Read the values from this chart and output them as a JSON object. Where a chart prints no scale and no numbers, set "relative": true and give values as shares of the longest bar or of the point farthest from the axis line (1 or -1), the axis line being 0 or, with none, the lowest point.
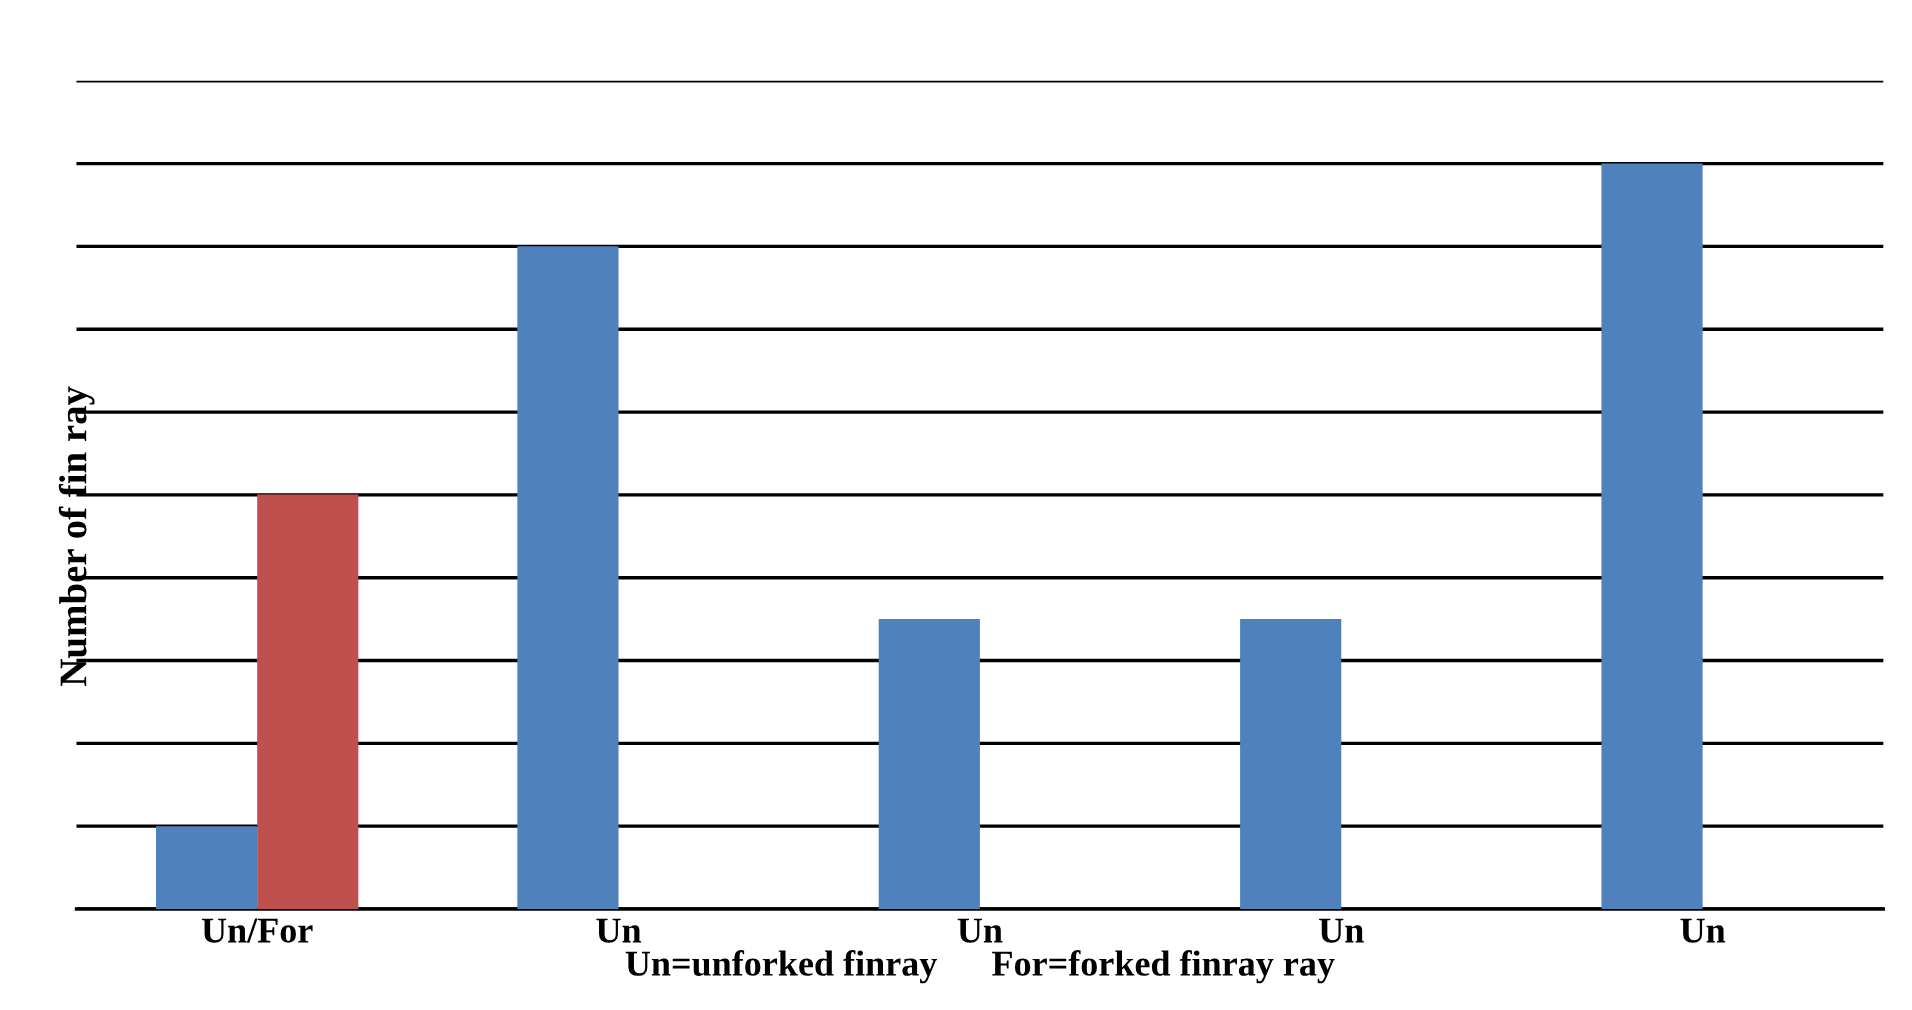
{
  "chart_data": {
    "type": "bar",
    "relative": true,
    "categories": [
      "Un/For",
      "Un",
      "Un",
      "Un",
      "Un"
    ],
    "series": [
      {
        "color": "#4f81bd",
        "values": [
          0.111,
          0.889,
          0.389,
          0.389,
          1
        ]
      },
      {
        "color": "#c0504d",
        "values": [
          0.556,
          null,
          null,
          null,
          null
        ]
      }
    ],
    "xlabel": "Un=unforked finray      For=forked finray ray",
    "ylabel": "Number of fin ray",
    "grid": "y",
    "legend": false
  }
}
